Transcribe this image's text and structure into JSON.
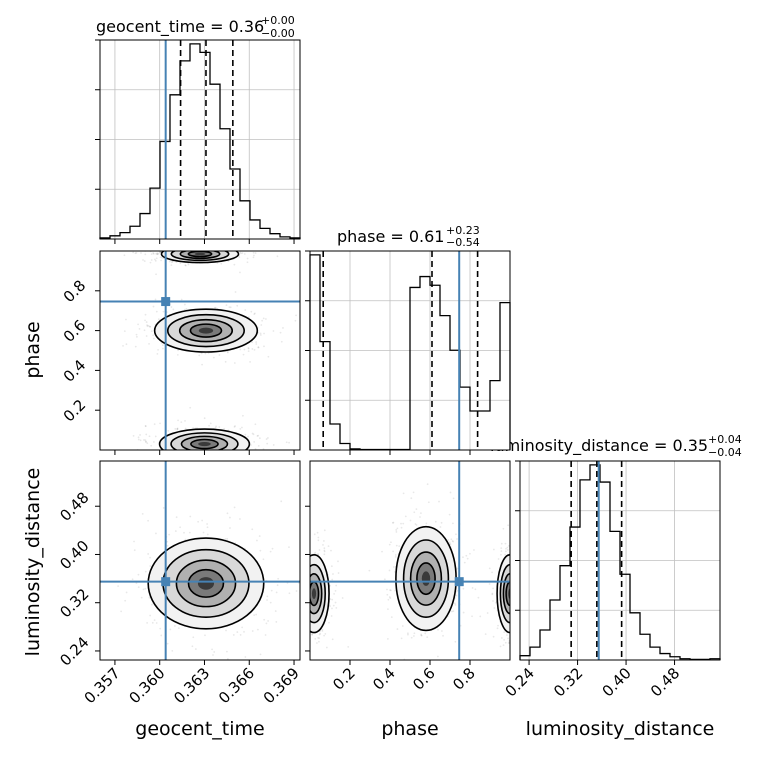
{
  "chart_data": {
    "type": "corner",
    "parameters": [
      "geocent_time",
      "phase",
      "luminosity_distance"
    ],
    "colors": {
      "truth": "#4682b4",
      "hist": "#000000",
      "grid": "#c0c0c0",
      "samples": "#000000"
    },
    "truths": {
      "geocent_time": 0.3604,
      "phase": 0.746,
      "luminosity_distance": 0.3549
    },
    "titles": {
      "geocent_time": {
        "text": "geocent_time = 0.36",
        "sup": "+0.00",
        "sub": "−0.00"
      },
      "phase": {
        "text": "phase = 0.61",
        "sup": "+0.23",
        "sub": "−0.54"
      },
      "luminosity_distance": {
        "text": "luminosity_distance = 0.35",
        "sup": "+0.04",
        "sub": "−0.04"
      }
    },
    "axis_labels": {
      "geocent_time": "geocent_time",
      "phase": "phase",
      "luminosity_distance": "luminosity_distance"
    },
    "ranges": {
      "geocent_time": [
        0.356,
        0.3694
      ],
      "phase": [
        0.0,
        1.0
      ],
      "luminosity_distance": [
        0.225,
        0.555
      ]
    },
    "ticks": {
      "geocent_time": {
        "values": [
          0.357,
          0.36,
          0.363,
          0.366,
          0.369
        ],
        "labels": [
          "0.357",
          "0.360",
          "0.363",
          "0.366",
          "0.369"
        ]
      },
      "phase": {
        "values": [
          0.2,
          0.4,
          0.6,
          0.8
        ],
        "labels": [
          "0.2",
          "0.4",
          "0.6",
          "0.8"
        ]
      },
      "luminosity_distance": {
        "values": [
          0.24,
          0.32,
          0.4,
          0.48
        ],
        "labels": [
          "0.24",
          "0.32",
          "0.40",
          "0.48"
        ]
      }
    },
    "quantiles": {
      "geocent_time": [
        0.3614,
        0.3631,
        0.3649
      ],
      "phase": [
        0.066,
        0.61,
        0.838
      ],
      "luminosity_distance": [
        0.3094,
        0.3518,
        0.3927
      ]
    },
    "histograms": {
      "geocent_time": {
        "edges": [
          0.356,
          0.35667,
          0.35734,
          0.35801,
          0.35868,
          0.35935,
          0.36002,
          0.36069,
          0.36136,
          0.36203,
          0.3627,
          0.36337,
          0.36404,
          0.36471,
          0.36538,
          0.36605,
          0.36672,
          0.36739,
          0.36806,
          0.36873,
          0.3694
        ],
        "counts": [
          0.5,
          1.5,
          3,
          6,
          12,
          24,
          46,
          68,
          84,
          92,
          88,
          73,
          52,
          33,
          18,
          9,
          5,
          2.5,
          1,
          0.5
        ]
      },
      "phase": {
        "edges": [
          0.0,
          0.05,
          0.1,
          0.15,
          0.2,
          0.25,
          0.3,
          0.35,
          0.4,
          0.45,
          0.5,
          0.55,
          0.6,
          0.65,
          0.7,
          0.75,
          0.8,
          0.85,
          0.9,
          0.95,
          1.0
        ],
        "counts": [
          90,
          50,
          12,
          3,
          0.5,
          0.2,
          0.2,
          0.2,
          0.2,
          0.2,
          75,
          80,
          76,
          62,
          46,
          29,
          18,
          18,
          32,
          68
        ]
      },
      "luminosity_distance": {
        "edges": [
          0.225,
          0.2415,
          0.258,
          0.2745,
          0.291,
          0.3075,
          0.324,
          0.3405,
          0.357,
          0.3735,
          0.39,
          0.4065,
          0.423,
          0.4395,
          0.456,
          0.4725,
          0.489,
          0.5055,
          0.522,
          0.5385,
          0.555
        ],
        "counts": [
          2,
          6,
          14,
          28,
          44,
          62,
          84,
          91,
          83,
          60,
          40,
          22,
          12,
          6,
          3,
          1.5,
          0.6,
          0.3,
          0.3,
          0.6
        ]
      }
    },
    "posterior_modes": [
      {
        "x": "geocent_time",
        "y": "phase",
        "cx": 0.3631,
        "cy": 0.6,
        "sx": 0.0016,
        "sy": 0.05
      },
      {
        "x": "geocent_time",
        "y": "phase",
        "cx": 0.363,
        "cy": 0.03,
        "sx": 0.0014,
        "sy": 0.035
      },
      {
        "x": "geocent_time",
        "y": "phase",
        "cx": 0.3627,
        "cy": 0.985,
        "sx": 0.0012,
        "sy": 0.02
      },
      {
        "x": "geocent_time",
        "y": "luminosity_distance",
        "cx": 0.3631,
        "cy": 0.352,
        "sx": 0.0018,
        "sy": 0.035
      },
      {
        "x": "phase",
        "y": "luminosity_distance",
        "cx": 0.58,
        "cy": 0.36,
        "sx": 0.07,
        "sy": 0.04
      },
      {
        "x": "phase",
        "y": "luminosity_distance",
        "cx": 0.02,
        "cy": 0.335,
        "sx": 0.035,
        "sy": 0.03
      },
      {
        "x": "phase",
        "y": "luminosity_distance",
        "cx": 1.0,
        "cy": 0.335,
        "sx": 0.03,
        "sy": 0.03
      }
    ]
  }
}
